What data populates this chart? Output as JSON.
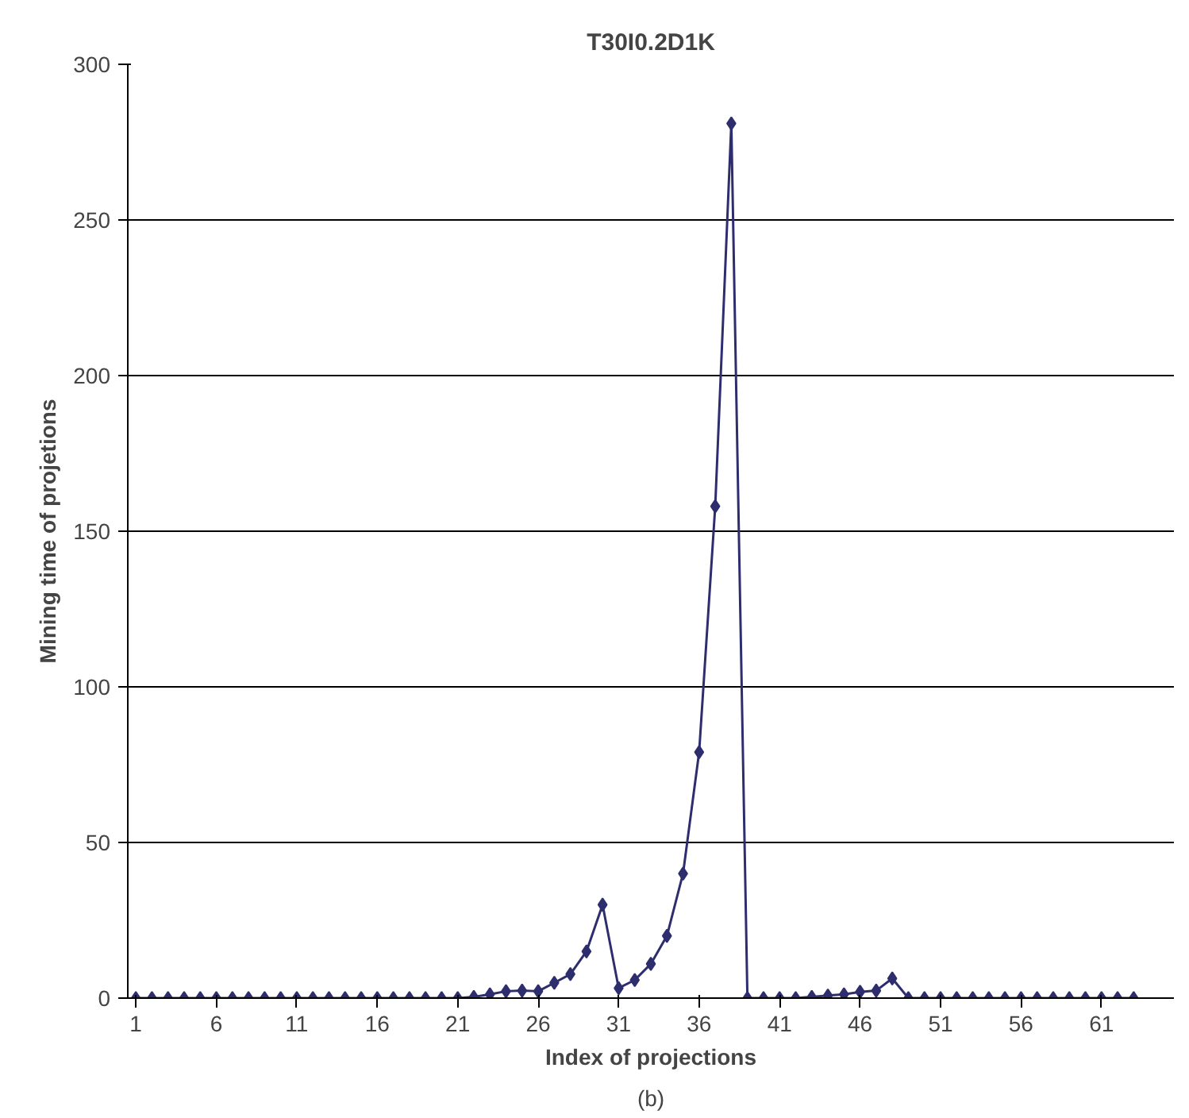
{
  "chart_data": {
    "type": "line",
    "title": "T30I0.2D1K",
    "xlabel": "Index of projections",
    "ylabel": "Mining time of projetions",
    "annotations": [
      "(b)"
    ],
    "x": [
      1,
      2,
      3,
      4,
      5,
      6,
      7,
      8,
      9,
      10,
      11,
      12,
      13,
      14,
      15,
      16,
      17,
      18,
      19,
      20,
      21,
      22,
      23,
      24,
      25,
      26,
      27,
      28,
      29,
      30,
      31,
      32,
      33,
      34,
      35,
      36,
      37,
      38,
      39,
      40,
      41,
      42,
      43,
      44,
      45,
      46,
      47,
      48,
      49,
      50,
      51,
      52,
      53,
      54,
      55,
      56,
      57,
      58,
      59,
      60,
      61,
      62,
      63
    ],
    "series": [
      {
        "color": "#2e2e6e",
        "values": [
          0,
          0,
          0,
          0,
          0,
          0,
          0,
          0,
          0,
          0,
          0,
          0,
          0,
          0,
          0,
          0,
          0,
          0,
          0,
          0,
          0,
          0.4,
          1.2,
          2.2,
          2.4,
          2.2,
          4.9,
          7.7,
          15,
          30,
          3.2,
          5.8,
          11,
          20,
          40,
          79,
          158,
          281,
          0,
          0,
          0,
          0,
          0.4,
          0.8,
          1.2,
          2,
          2.4,
          6.3,
          0,
          0,
          0,
          0,
          0,
          0,
          0,
          0,
          0,
          0,
          0,
          0,
          0,
          0,
          0
        ]
      }
    ],
    "xlim": [
      0.5,
      65.5
    ],
    "xticks": [
      1,
      6,
      11,
      16,
      21,
      26,
      31,
      36,
      41,
      46,
      51,
      56,
      61
    ],
    "ylim": [
      0,
      300
    ],
    "yticks": [
      0,
      50,
      100,
      150,
      200,
      250,
      300
    ],
    "grid": "y",
    "marker": "diamond",
    "line_style": "solid"
  }
}
